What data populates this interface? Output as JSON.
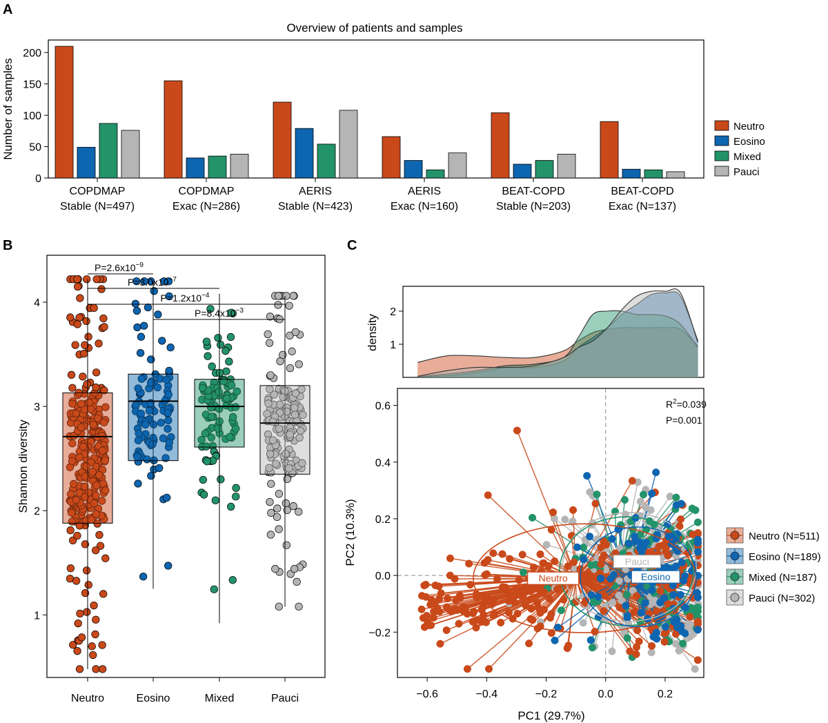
{
  "panels": {
    "A": {
      "label": "A"
    },
    "B": {
      "label": "B"
    },
    "C": {
      "label": "C"
    }
  },
  "colors": {
    "Neutro": "#C9491A",
    "Eosino": "#0E65B0",
    "Mixed": "#23936A",
    "Pauci": "#B5B5B5"
  },
  "chart_data": [
    {
      "id": "A",
      "type": "bar",
      "title": "Overview of patients and samples",
      "xlabel": "",
      "ylabel": "Number of samples",
      "ylim": [
        0,
        220
      ],
      "yticks": [
        0,
        50,
        100,
        150,
        200
      ],
      "categories": [
        {
          "line1": "COPDMAP",
          "line2": "Stable (N=497)"
        },
        {
          "line1": "COPDMAP",
          "line2": "Exac (N=286)"
        },
        {
          "line1": "AERIS",
          "line2": "Stable (N=423)"
        },
        {
          "line1": "AERIS",
          "line2": "Exac (N=160)"
        },
        {
          "line1": "BEAT-COPD",
          "line2": "Stable (N=203)"
        },
        {
          "line1": "BEAT-COPD",
          "line2": "Exac (N=137)"
        }
      ],
      "series": [
        {
          "name": "Neutro",
          "values": [
            210,
            155,
            121,
            66,
            104,
            90
          ]
        },
        {
          "name": "Eosino",
          "values": [
            49,
            32,
            79,
            28,
            22,
            14
          ]
        },
        {
          "name": "Mixed",
          "values": [
            87,
            35,
            54,
            13,
            28,
            13
          ]
        },
        {
          "name": "Pauci",
          "values": [
            76,
            38,
            108,
            40,
            38,
            10
          ]
        }
      ],
      "legend": "right"
    },
    {
      "id": "B",
      "type": "box",
      "xlabel": "",
      "ylabel": "Shannon diversity",
      "ylim": [
        0.4,
        4.45
      ],
      "yticks": [
        1,
        2,
        3,
        4
      ],
      "categories": [
        "Neutro",
        "Eosino",
        "Mixed",
        "Pauci"
      ],
      "boxes": [
        {
          "name": "Neutro",
          "q1": 1.88,
          "median": 2.71,
          "q3": 3.13,
          "min": 0.48,
          "max": 4.22,
          "n": 511,
          "jitter_range": [
            0.48,
            4.22
          ]
        },
        {
          "name": "Eosino",
          "q1": 2.48,
          "median": 3.05,
          "q3": 3.31,
          "min": 1.25,
          "max": 4.2,
          "n": 189,
          "jitter_range": [
            1.25,
            4.2
          ]
        },
        {
          "name": "Mixed",
          "q1": 2.61,
          "median": 3.0,
          "q3": 3.26,
          "min": 0.92,
          "max": 4.08,
          "n": 187,
          "jitter_range": [
            0.92,
            4.08
          ]
        },
        {
          "name": "Pauci",
          "q1": 2.35,
          "median": 2.84,
          "q3": 3.2,
          "min": 1.08,
          "max": 4.06,
          "n": 302,
          "jitter_range": [
            1.08,
            4.06
          ]
        }
      ],
      "comparisons": [
        {
          "from": 0,
          "to": 1,
          "base": "P=2.6x10",
          "exp": "−9"
        },
        {
          "from": 0,
          "to": 2,
          "base": "P=3.0x10",
          "exp": "−7"
        },
        {
          "from": 0,
          "to": 3,
          "base": "P=1.2x10",
          "exp": "−4"
        },
        {
          "from": 1,
          "to": 3,
          "base": "P=8.4x10",
          "exp": "−3"
        }
      ]
    },
    {
      "id": "C-density",
      "type": "area",
      "ylabel": "density",
      "xlim": [
        -0.7,
        0.33
      ],
      "ylim": [
        0,
        2.75
      ],
      "yticks": [
        1,
        2
      ],
      "x": [
        -0.65,
        -0.55,
        -0.45,
        -0.35,
        -0.25,
        -0.15,
        -0.1,
        -0.05,
        0.0,
        0.05,
        0.1,
        0.15,
        0.2,
        0.25,
        0.31
      ],
      "series": [
        {
          "name": "Neutro",
          "values": [
            0.45,
            0.65,
            0.65,
            0.6,
            0.6,
            0.8,
            1.1,
            1.35,
            1.45,
            1.5,
            1.5,
            1.5,
            1.5,
            1.45,
            0.95
          ]
        },
        {
          "name": "Eosino",
          "values": [
            0.02,
            0.05,
            0.15,
            0.3,
            0.3,
            0.5,
            0.9,
            1.2,
            1.5,
            1.9,
            2.2,
            2.5,
            2.55,
            2.45,
            1.1
          ]
        },
        {
          "name": "Mixed",
          "values": [
            0.02,
            0.1,
            0.2,
            0.35,
            0.4,
            0.6,
            1.2,
            1.9,
            2.0,
            2.0,
            1.9,
            1.9,
            1.85,
            1.6,
            0.9
          ]
        },
        {
          "name": "Pauci",
          "values": [
            0.03,
            0.2,
            0.3,
            0.3,
            0.35,
            0.6,
            0.9,
            1.1,
            1.5,
            2.05,
            2.45,
            2.6,
            2.6,
            2.55,
            1.05
          ]
        }
      ]
    },
    {
      "id": "C-pcoa",
      "type": "scatter",
      "xlabel": "PC1 (29.7%)",
      "ylabel": "PC2 (10.3%)",
      "xlim": [
        -0.7,
        0.33
      ],
      "ylim": [
        -0.36,
        0.66
      ],
      "xticks": [
        -0.6,
        -0.4,
        -0.2,
        0.0,
        0.2
      ],
      "yticks": [
        -0.2,
        0.0,
        0.2,
        0.4,
        0.6
      ],
      "annotation": {
        "r2_prefix": "R",
        "r2_sup": "2",
        "r2_value": "=0.039",
        "p": "P=0.001"
      },
      "centroids": [
        {
          "name": "Neutro",
          "x": -0.1,
          "y": -0.01,
          "n": 511,
          "sd": [
            0.25,
            0.12
          ]
        },
        {
          "name": "Eosino",
          "x": 0.08,
          "y": -0.005,
          "n": 189,
          "sd": [
            0.13,
            0.11
          ]
        },
        {
          "name": "Mixed",
          "x": 0.04,
          "y": 0.015,
          "n": 187,
          "sd": [
            0.15,
            0.12
          ]
        },
        {
          "name": "Pauci",
          "x": 0.05,
          "y": 0.03,
          "n": 302,
          "sd": [
            0.15,
            0.12
          ]
        }
      ],
      "legend": [
        {
          "name": "Neutro",
          "label": "Neutro (N=511)"
        },
        {
          "name": "Eosino",
          "label": "Eosino (N=189)"
        },
        {
          "name": "Mixed",
          "label": "Mixed (N=187)"
        },
        {
          "name": "Pauci",
          "label": "Pauci (N=302)"
        }
      ]
    }
  ]
}
